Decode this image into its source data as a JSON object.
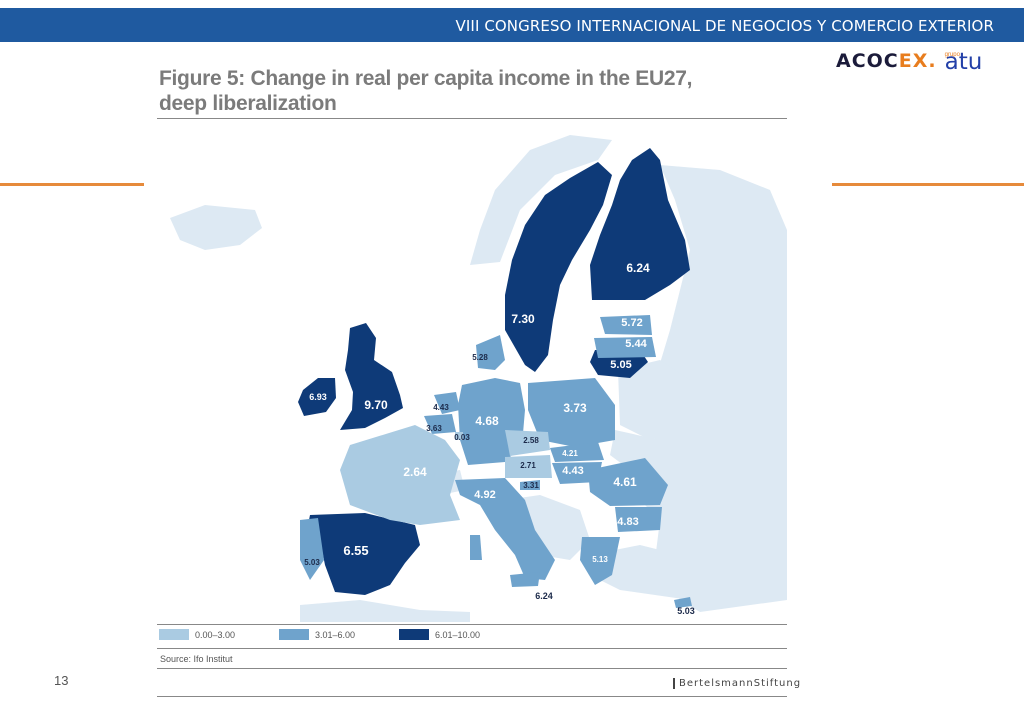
{
  "header": {
    "title": "VIII CONGRESO INTERNACIONAL DE NEGOCIOS Y COMERCIO EXTERIOR"
  },
  "logo": {
    "acocex_main": "ACOC",
    "acocex_accent": "EX.",
    "atu_small": "grupo",
    "atu_main": "atu"
  },
  "figure": {
    "title_line1": "Figure 5: Change in real per capita income in the EU27,",
    "title_line2": "deep liberalization",
    "source": "Source: Ifo Institut",
    "publisher": "BertelsmannStiftung"
  },
  "legend": [
    {
      "label": "0.00–3.00",
      "color": "#aacbe2"
    },
    {
      "label": "3.01–6.00",
      "color": "#6fa3cc"
    },
    {
      "label": "6.01–10.00",
      "color": "#0e3a78"
    }
  ],
  "map_values": {
    "finland": "6.24",
    "sweden": "7.30",
    "estonia": "5.72",
    "latvia": "5.44",
    "lithuania": "5.05",
    "denmark": "5.28",
    "ireland": "6.93",
    "uk": "9.70",
    "netherlands": "4.43",
    "belgium": "3.63",
    "luxembourg": "0.03",
    "germany": "4.68",
    "poland": "3.73",
    "czech": "2.58",
    "slovakia": "4.21",
    "austria": "2.71",
    "hungary": "4.43",
    "slovenia": "3.31",
    "france": "2.64",
    "italy": "4.92",
    "romania": "4.61",
    "bulgaria": "4.83",
    "greece": "5.13",
    "malta": "6.24",
    "cyprus": "5.03",
    "portugal": "5.03",
    "spain": "6.55"
  },
  "page_number": "13",
  "colors": {
    "header_bar": "#1f5aa0",
    "accent_orange": "#e68a3b",
    "high": "#0e3a78",
    "mid": "#6fa3cc",
    "low": "#aacbe2",
    "non_eu": "#dde9f3"
  }
}
